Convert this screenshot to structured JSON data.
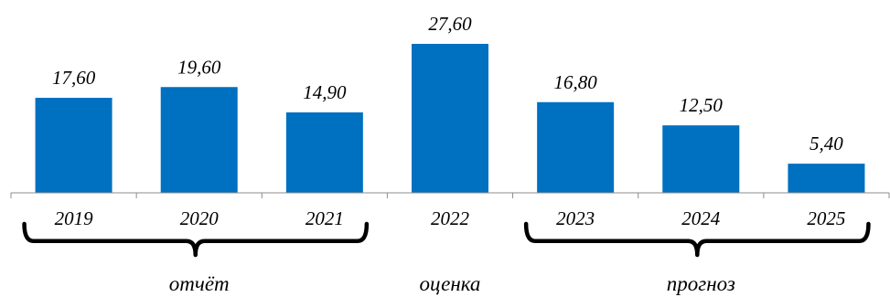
{
  "chart_data": {
    "type": "bar",
    "categories": [
      "2019",
      "2020",
      "2021",
      "2022",
      "2023",
      "2024",
      "2025"
    ],
    "values": [
      17.6,
      19.6,
      14.9,
      27.6,
      16.8,
      12.5,
      5.4
    ],
    "value_labels": [
      "17,60",
      "19,60",
      "14,90",
      "27,60",
      "16,80",
      "12,50",
      "5,40"
    ],
    "title": "",
    "xlabel": "",
    "ylabel": "",
    "ylim": [
      0,
      27.6
    ],
    "grid": false,
    "legend": "none",
    "bar_color": "#0070C0",
    "groups": [
      {
        "label": "отчёт",
        "categories": [
          "2019",
          "2020",
          "2021"
        ]
      },
      {
        "label": "оценка",
        "categories": [
          "2022"
        ]
      },
      {
        "label": "прогноз",
        "categories": [
          "2023",
          "2024",
          "2025"
        ]
      }
    ]
  }
}
